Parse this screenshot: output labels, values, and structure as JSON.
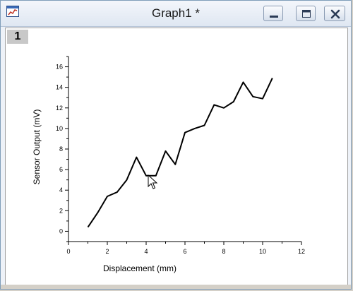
{
  "window": {
    "title": "Graph1 *",
    "layer_label": "1",
    "icons": {
      "app": "graph-window-icon",
      "minimize": "minimize-icon",
      "maximize": "maximize-icon",
      "close": "close-icon",
      "cursor": "mouse-pointer-icon"
    }
  },
  "chart_data": {
    "type": "line",
    "xlabel": "Displacement (mm)",
    "ylabel": "Sensor Output (mV)",
    "xlim": [
      0,
      12
    ],
    "ylim": [
      -1,
      17
    ],
    "xticks": [
      "0",
      "2",
      "4",
      "6",
      "8",
      "10",
      "12"
    ],
    "yticks": [
      "0",
      "2",
      "4",
      "6",
      "8",
      "10",
      "12",
      "14",
      "16"
    ],
    "grid": false,
    "line_color": "#000000",
    "series": [
      {
        "x": [
          1.0,
          1.5,
          2.0,
          2.5,
          3.0,
          3.5,
          4.0,
          4.5,
          5.0,
          5.5,
          6.0,
          6.5,
          7.0,
          7.5,
          8.0,
          8.5,
          9.0,
          9.5,
          10.0,
          10.5
        ],
        "y": [
          0.4,
          1.8,
          3.4,
          3.8,
          5.0,
          7.2,
          5.4,
          5.4,
          7.8,
          6.5,
          9.6,
          10.0,
          10.3,
          12.3,
          12.0,
          12.6,
          14.5,
          13.1,
          12.9,
          14.9
        ]
      }
    ]
  }
}
